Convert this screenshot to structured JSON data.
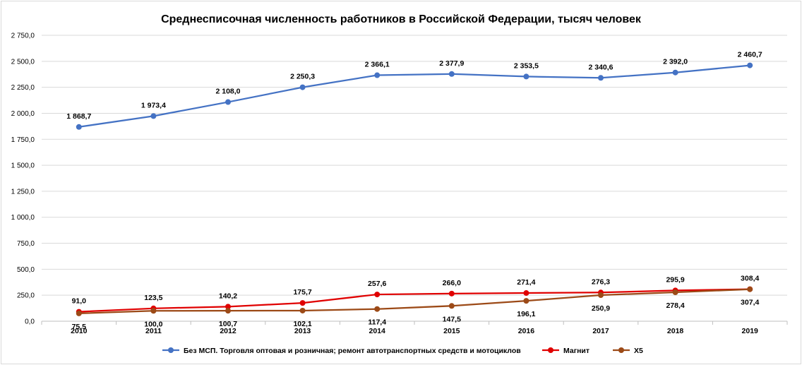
{
  "chart_data": {
    "type": "line",
    "title": "Среднесписочная численность работников в Российской Федерации, тысяч человек",
    "xlabel": "",
    "ylabel": "",
    "categories": [
      "2010",
      "2011",
      "2012",
      "2013",
      "2014",
      "2015",
      "2016",
      "2017",
      "2018",
      "2019"
    ],
    "ylim": [
      0,
      2750
    ],
    "yticks": [
      "0,0",
      "250,0",
      "500,0",
      "750,0",
      "1 000,0",
      "1 250,0",
      "1 500,0",
      "1 750,0",
      "2 000,0",
      "2 250,0",
      "2 500,0",
      "2 750,0"
    ],
    "grid": true,
    "legend_position": "bottom",
    "series": [
      {
        "name": "Без МСП. Торговля оптовая и розничная; ремонт автотранспортных средств и мотоциклов",
        "color": "#4472c4",
        "label_position": "above",
        "values": [
          1868.7,
          1973.4,
          2108.0,
          2250.3,
          2366.1,
          2377.9,
          2353.5,
          2340.6,
          2392.0,
          2460.7
        ],
        "labels": [
          "1 868,7",
          "1 973,4",
          "2 108,0",
          "2 250,3",
          "2 366,1",
          "2 377,9",
          "2 353,5",
          "2 340,6",
          "2 392,0",
          "2 460,7"
        ]
      },
      {
        "name": "Магнит",
        "color": "#e00000",
        "label_position": "above",
        "values": [
          91.0,
          123.5,
          140.2,
          175.7,
          257.6,
          266.0,
          271.4,
          276.3,
          295.9,
          308.4
        ],
        "labels": [
          "91,0",
          "123,5",
          "140,2",
          "175,7",
          "257,6",
          "266,0",
          "271,4",
          "276,3",
          "295,9",
          "308,4"
        ]
      },
      {
        "name": "X5",
        "color": "#9c4a17",
        "label_position": "below",
        "values": [
          75.5,
          100.0,
          100.7,
          102.1,
          117.4,
          147.5,
          196.1,
          250.9,
          278.4,
          307.4
        ],
        "labels": [
          "75,5",
          "100,0",
          "100,7",
          "102,1",
          "117,4",
          "147,5",
          "196,1",
          "250,9",
          "278,4",
          "307,4"
        ]
      }
    ]
  }
}
